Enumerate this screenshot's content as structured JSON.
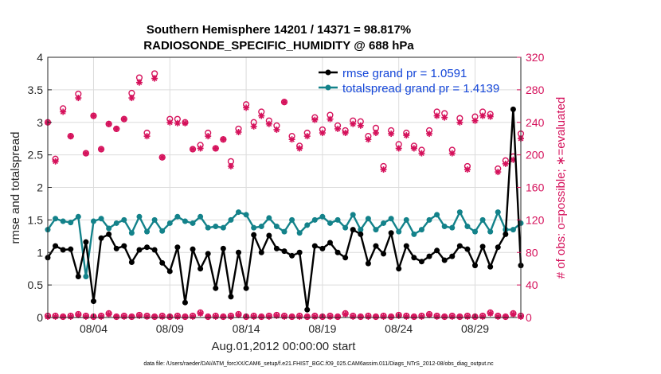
{
  "chart_data": {
    "type": "line",
    "title": "Southern Hemisphere 14201 / 14371 = 98.817%",
    "subtitle": "RADIOSONDE_SPECIFIC_HUMIDITY @ 688 hPa",
    "xlabel": "Aug.01,2012 00:00:00 start",
    "ylabel": "rmse and totalspread",
    "ylabel_right": "# of obs: o=possible; ∗=evaluated",
    "footer": "data file: /Users/raeder/DAI/ATM_forcXX/CAM6_setup/f.e21.FHIST_BGC.f09_025.CAM6assim.011/Diags_NTrS_2012-08/obs_diag_output.nc",
    "x_tick_labels": [
      "08/04",
      "08/09",
      "08/14",
      "08/19",
      "08/24",
      "08/29"
    ],
    "x_tick_values": [
      4,
      9,
      14,
      19,
      24,
      29
    ],
    "xlim": [
      1,
      32
    ],
    "ylim": [
      0,
      4
    ],
    "y_ticks": [
      "0",
      "0.5",
      "1",
      "1.5",
      "2",
      "2.5",
      "3",
      "3.5",
      "4"
    ],
    "ylim_right": [
      0,
      320
    ],
    "y_ticks_right": [
      "0",
      "40",
      "80",
      "120",
      "160",
      "200",
      "240",
      "280",
      "320"
    ],
    "legend": [
      {
        "label": "rmse grand pr = 1.0591",
        "color": "#000000"
      },
      {
        "label": "totalspread grand pr = 1.4139",
        "color": "#13828a"
      }
    ],
    "colors": {
      "rmse": "#000000",
      "spread": "#13828a",
      "obs": "#d5115b",
      "legend_text": "#1446d8"
    },
    "x": [
      1.0,
      1.5,
      2.0,
      2.5,
      3.0,
      3.5,
      4.0,
      4.5,
      5.0,
      5.5,
      6.0,
      6.5,
      7.0,
      7.5,
      8.0,
      8.5,
      9.0,
      9.5,
      10.0,
      10.5,
      11.0,
      11.5,
      12.0,
      12.5,
      13.0,
      13.5,
      14.0,
      14.5,
      15.0,
      15.5,
      16.0,
      16.5,
      17.0,
      17.5,
      18.0,
      18.5,
      19.0,
      19.5,
      20.0,
      20.5,
      21.0,
      21.5,
      22.0,
      22.5,
      23.0,
      23.5,
      24.0,
      24.5,
      25.0,
      25.5,
      26.0,
      26.5,
      27.0,
      27.5,
      28.0,
      28.5,
      29.0,
      29.5,
      30.0,
      30.5,
      31.0,
      31.5,
      32.0
    ],
    "series": [
      {
        "name": "rmse",
        "values": [
          0.92,
          1.1,
          1.04,
          1.05,
          0.63,
          1.16,
          0.25,
          1.22,
          1.28,
          1.06,
          1.1,
          0.85,
          1.04,
          1.08,
          1.04,
          0.84,
          0.71,
          1.08,
          0.23,
          1.05,
          0.75,
          0.98,
          0.45,
          1.06,
          0.32,
          1.0,
          0.45,
          1.27,
          1.0,
          1.26,
          1.06,
          1.02,
          0.95,
          1.0,
          0.12,
          1.1,
          1.06,
          1.15,
          1.0,
          0.92,
          1.35,
          1.28,
          0.83,
          1.1,
          0.98,
          1.3,
          0.75,
          1.1,
          0.92,
          0.86,
          0.94,
          1.03,
          0.88,
          0.94,
          1.1,
          1.05,
          0.8,
          1.09,
          0.78,
          1.08,
          1.28,
          3.2,
          0.8
        ]
      },
      {
        "name": "totalspread",
        "values": [
          1.35,
          1.52,
          1.48,
          1.46,
          1.55,
          0.63,
          1.48,
          1.52,
          1.37,
          1.45,
          1.5,
          1.3,
          1.55,
          1.32,
          1.5,
          1.33,
          1.45,
          1.55,
          1.48,
          1.45,
          1.55,
          1.38,
          1.4,
          1.38,
          1.5,
          1.62,
          1.58,
          1.38,
          1.4,
          1.53,
          1.4,
          1.32,
          1.5,
          1.3,
          1.42,
          1.5,
          1.55,
          1.45,
          1.5,
          1.38,
          1.58,
          1.35,
          1.52,
          1.35,
          1.45,
          1.52,
          1.32,
          1.5,
          1.28,
          1.35,
          1.5,
          1.58,
          1.4,
          1.38,
          1.62,
          1.4,
          1.32,
          1.5,
          1.32,
          1.62,
          1.35,
          1.35,
          1.45
        ]
      },
      {
        "name": "obs_possible",
        "values": [
          240,
          195,
          257,
          223,
          275,
          202,
          248,
          207,
          238,
          232,
          244,
          276,
          295,
          227,
          300,
          197,
          244,
          244,
          240,
          207,
          212,
          227,
          208,
          219,
          192,
          232,
          262,
          240,
          253,
          242,
          236,
          265,
          223,
          211,
          227,
          246,
          231,
          249,
          236,
          230,
          242,
          241,
          223,
          233,
          186,
          230,
          213,
          227,
          211,
          206,
          230,
          253,
          251,
          206,
          245,
          186,
          247,
          253,
          250,
          183,
          193,
          198,
          226
        ]
      },
      {
        "name": "obs_evaluated",
        "values": [
          240,
          192,
          253,
          223,
          270,
          202,
          248,
          207,
          238,
          232,
          244,
          270,
          289,
          223,
          294,
          197,
          240,
          239,
          239,
          207,
          208,
          223,
          208,
          219,
          186,
          228,
          258,
          235,
          248,
          238,
          231,
          265,
          219,
          208,
          223,
          243,
          227,
          244,
          232,
          227,
          238,
          236,
          219,
          227,
          182,
          226,
          208,
          224,
          208,
          202,
          226,
          248,
          246,
          202,
          240,
          182,
          242,
          248,
          247,
          179,
          189,
          194,
          220
        ]
      }
    ],
    "obs_x": [
      1.0,
      1.5,
      2.0,
      2.5,
      3.0,
      3.5,
      4.0,
      4.5,
      5.0,
      5.5,
      6.0,
      6.5,
      7.0,
      7.5,
      8.0,
      8.5,
      9.0,
      9.5,
      10.0,
      10.5,
      11.0,
      11.5,
      12.0,
      12.5,
      13.0,
      13.5,
      14.0,
      14.5,
      15.0,
      15.5,
      16.0,
      16.5,
      17.0,
      17.5,
      18.0,
      18.5,
      19.0,
      19.5,
      20.0,
      20.5,
      21.0,
      21.5,
      22.0,
      22.5,
      23.0,
      23.5,
      24.0,
      24.5,
      25.0,
      25.5,
      26.0,
      26.5,
      27.0,
      27.5,
      28.0,
      28.5,
      29.0,
      29.5,
      30.0,
      30.5,
      31.0,
      31.5,
      32.0
    ],
    "bottom_obs_possible": [
      2,
      2,
      1,
      2,
      4,
      2,
      1,
      2,
      5,
      1,
      2,
      1,
      3,
      2,
      1,
      2,
      1,
      2,
      1,
      2,
      6,
      1,
      2,
      1,
      2,
      4,
      1,
      2,
      1,
      2,
      3,
      2,
      1,
      2,
      1,
      2,
      1,
      2,
      1,
      5,
      2,
      1,
      2,
      1,
      2,
      1,
      3,
      2,
      1,
      2,
      4,
      2,
      1,
      2,
      1,
      2,
      1,
      2,
      6,
      2,
      1,
      5,
      2
    ],
    "bottom_obs_evaluated": [
      1,
      1,
      1,
      1,
      3,
      1,
      1,
      1,
      4,
      1,
      1,
      1,
      2,
      1,
      1,
      1,
      1,
      1,
      1,
      1,
      5,
      1,
      1,
      1,
      1,
      3,
      1,
      1,
      1,
      1,
      2,
      1,
      1,
      1,
      1,
      1,
      1,
      1,
      1,
      4,
      1,
      1,
      1,
      1,
      1,
      1,
      2,
      1,
      1,
      1,
      3,
      1,
      1,
      1,
      1,
      1,
      1,
      1,
      5,
      1,
      1,
      4,
      1
    ]
  }
}
